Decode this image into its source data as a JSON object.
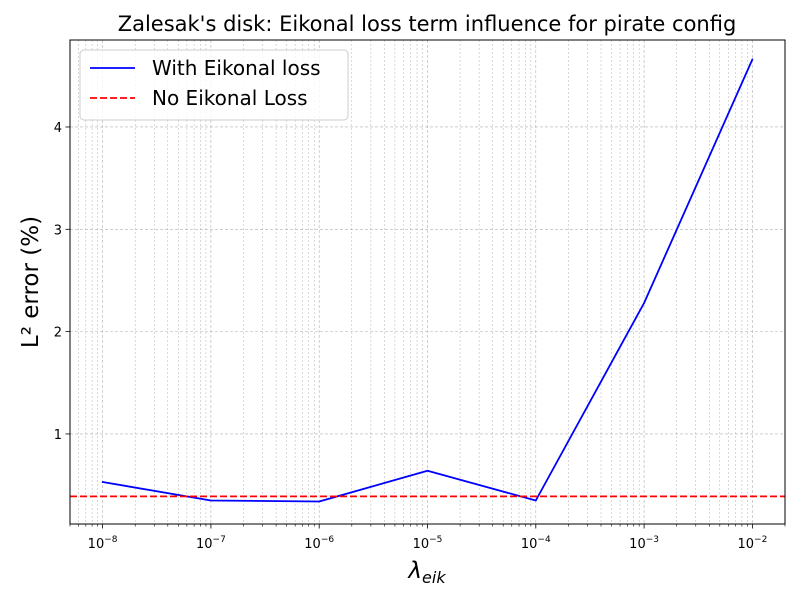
{
  "chart_data": {
    "type": "line",
    "title": "Zalesak's disk: Eikonal loss term influence for pirate config",
    "xlabel_main": "λ",
    "xlabel_sub": "eik",
    "ylabel": "L² error (%)",
    "x_scale": "log",
    "xlim": [
      5e-09,
      0.02
    ],
    "ylim": [
      0.12,
      4.85
    ],
    "grid": true,
    "legend_position": "top-left",
    "x_ticks": [
      {
        "value": 1e-08,
        "exp": "−8"
      },
      {
        "value": 1e-07,
        "exp": "−7"
      },
      {
        "value": 1e-06,
        "exp": "−6"
      },
      {
        "value": 1e-05,
        "exp": "−5"
      },
      {
        "value": 0.0001,
        "exp": "−4"
      },
      {
        "value": 0.001,
        "exp": "−3"
      },
      {
        "value": 0.01,
        "exp": "−2"
      }
    ],
    "y_ticks": [
      1,
      2,
      3,
      4
    ],
    "series": [
      {
        "name": "With Eikonal loss",
        "style": "solid",
        "color": "#0000ff",
        "x": [
          1e-08,
          1e-07,
          1e-06,
          1e-05,
          0.0001,
          0.001,
          0.01
        ],
        "y": [
          0.53,
          0.35,
          0.34,
          0.64,
          0.35,
          2.28,
          4.66
        ]
      },
      {
        "name": "No Eikonal Loss",
        "style": "dashed",
        "color": "#ff0000",
        "hline": 0.39
      }
    ]
  }
}
